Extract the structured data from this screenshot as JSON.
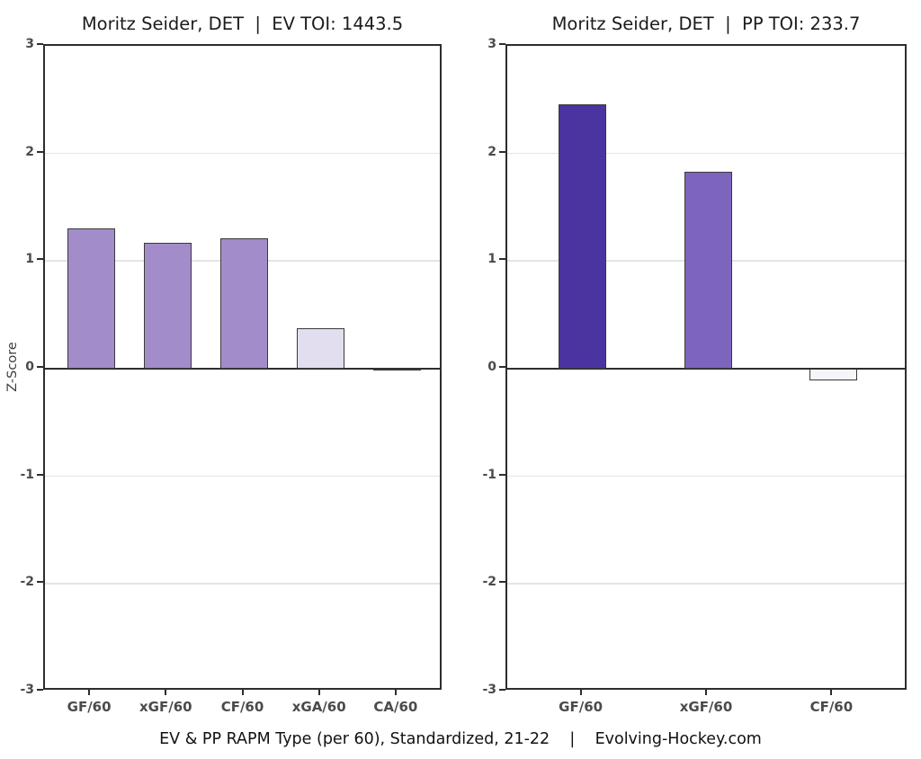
{
  "figure": {
    "caption": "EV & PP RAPM Type (per 60), Standardized, 21-22    |    Evolving-Hockey.com"
  },
  "chart_data": [
    {
      "type": "bar",
      "title": "Moritz Seider, DET  |  EV TOI: 1443.5",
      "ylabel": "Z-Score",
      "categories": [
        "GF/60",
        "xGF/60",
        "CF/60",
        "xGA/60",
        "CA/60"
      ],
      "values": [
        1.3,
        1.17,
        1.21,
        0.38,
        -0.02
      ],
      "colors": [
        "#a28dca",
        "#a28dca",
        "#a28dca",
        "#e2def0",
        "#fcfbfe"
      ],
      "bar_edge_color": "#3a3a3a",
      "ylim": [
        -3,
        3
      ],
      "yticks": [
        3,
        2,
        1,
        0,
        -1,
        -2,
        -3
      ],
      "grid": "horizontal light gridlines at integers, dark zero line",
      "legend": "none"
    },
    {
      "type": "bar",
      "title": "Moritz Seider, DET  |  PP TOI: 233.7",
      "ylabel": "",
      "categories": [
        "GF/60",
        "xGF/60",
        "CF/60"
      ],
      "values": [
        2.46,
        1.83,
        -0.11
      ],
      "colors": [
        "#4b34a0",
        "#7c65bd",
        "#f7f5fa"
      ],
      "bar_edge_color": "#3a3a3a",
      "ylim": [
        -3,
        3
      ],
      "yticks": [
        3,
        2,
        1,
        0,
        -1,
        -2,
        -3
      ],
      "grid": "horizontal light gridlines at integers, dark zero line",
      "legend": "none"
    }
  ]
}
